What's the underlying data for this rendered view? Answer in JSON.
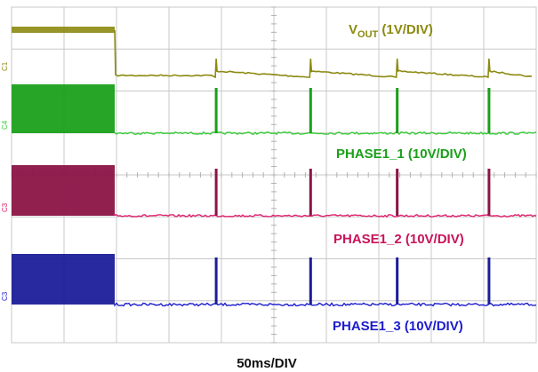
{
  "chart_data": {
    "type": "line",
    "instrument": "oscilloscope",
    "grid": true,
    "divisions": {
      "x": 10,
      "y": 8
    },
    "time_scale": "50ms/DIV",
    "colors": {
      "vout": "#8c8a10",
      "phase1_1": "#1aa01a",
      "phase1_2": "#8b1446",
      "phase1_3": "#1c1c9a",
      "grid": "#c8c8c8"
    },
    "traces": [
      {
        "id": "vout",
        "label_main": "V",
        "label_sub": "OUT",
        "label_suffix": " (1V/DIV)",
        "ch_marker": "C1",
        "color_key": "vout"
      },
      {
        "id": "phase1_1",
        "label": "PHASE1_1 (10V/DIV)",
        "ch_marker": "C4",
        "color_key": "phase1_1"
      },
      {
        "id": "phase1_2",
        "label": "PHASE1_2 (10V/DIV)",
        "ch_marker": "C3",
        "color_key": "phase1_2"
      },
      {
        "id": "phase1_3",
        "label": "PHASE1_3 (10V/DIV)",
        "ch_marker": "C3",
        "color_key": "phase1_3"
      }
    ],
    "burst_region_div": [
      0,
      2.0
    ],
    "pulse_positions_div": [
      3.9,
      5.7,
      7.35,
      9.1
    ]
  }
}
